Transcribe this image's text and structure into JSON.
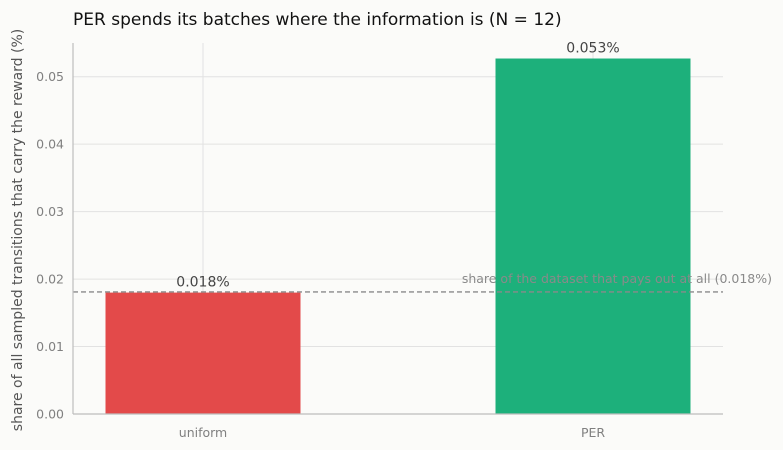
{
  "chart_data": {
    "type": "bar",
    "title": "PER spends its batches where the information is (N = 12)",
    "xlabel": "",
    "ylabel": "share of all sampled transitions that carry the reward (%)",
    "categories": [
      "uniform",
      "PER"
    ],
    "values": [
      0.018,
      0.0527
    ],
    "value_labels": [
      "0.018%",
      "0.053%"
    ],
    "bar_colors": [
      "#e34a4a",
      "#1db07b"
    ],
    "ylim": [
      0,
      0.055
    ],
    "yticks": [
      0,
      0.01,
      0.02,
      0.03,
      0.04,
      0.05
    ],
    "ytick_labels": [
      "0.00",
      "0.01",
      "0.02",
      "0.03",
      "0.04",
      "0.05"
    ],
    "grid": true,
    "legend": "none",
    "reference_line": {
      "value": 0.0181,
      "label": "share of the dataset that pays out at all (0.018%)",
      "style": "dashed",
      "color": "#8a8a8a"
    }
  }
}
